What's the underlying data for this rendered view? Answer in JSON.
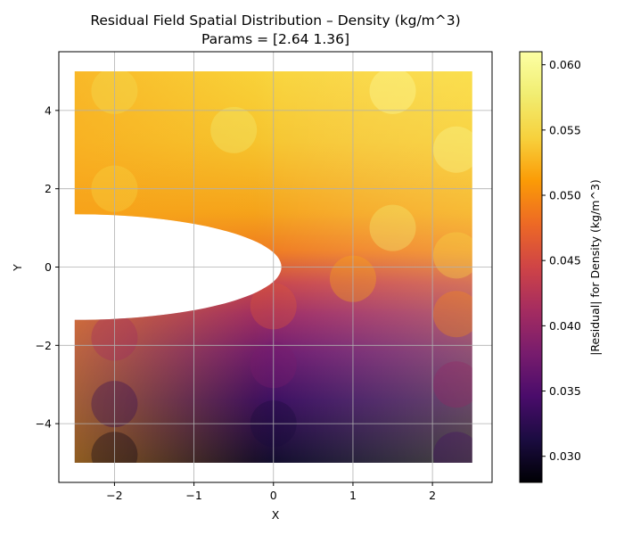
{
  "chart_data": {
    "type": "heatmap",
    "title": "Residual Field Spatial Distribution – Density (kg/m^3)",
    "subtitle": "Params = [2.64 1.36]",
    "xlabel": "X",
    "ylabel": "Y",
    "xlim": [
      -2.7,
      2.75
    ],
    "ylim": [
      -5.5,
      5.5
    ],
    "x_ticks": [
      -2,
      -1,
      0,
      1,
      2
    ],
    "y_ticks": [
      -4,
      -2,
      0,
      2,
      4
    ],
    "x_tick_labels": [
      "−2",
      "−1",
      "0",
      "1",
      "2"
    ],
    "y_tick_labels": [
      "−4",
      "−2",
      "0",
      "2",
      "4"
    ],
    "grid": true,
    "domain": {
      "x_range": [
        -2.5,
        2.5
      ],
      "y_range": [
        -5.0,
        5.0
      ],
      "cutout": "half-ellipse open to the left, tip at x=0.1, half-height 1.35 at x=-2.5"
    },
    "colorbar": {
      "label": "|Residual| for Density (kg/m^3)",
      "colormap": "inferno",
      "range": [
        0.028,
        0.061
      ],
      "ticks": [
        0.03,
        0.035,
        0.04,
        0.045,
        0.05,
        0.055,
        0.06
      ],
      "tick_labels": [
        "0.030",
        "0.035",
        "0.040",
        "0.045",
        "0.050",
        "0.055",
        "0.060"
      ]
    },
    "field_samples": [
      {
        "x": -2.0,
        "y": 4.5,
        "value": 0.056
      },
      {
        "x": -2.0,
        "y": 2.0,
        "value": 0.055
      },
      {
        "x": -0.5,
        "y": 3.5,
        "value": 0.058
      },
      {
        "x": 1.5,
        "y": 4.5,
        "value": 0.061
      },
      {
        "x": 2.3,
        "y": 3.0,
        "value": 0.06
      },
      {
        "x": 1.5,
        "y": 1.0,
        "value": 0.058
      },
      {
        "x": 2.3,
        "y": 0.3,
        "value": 0.055
      },
      {
        "x": 1.0,
        "y": -0.3,
        "value": 0.052
      },
      {
        "x": 2.3,
        "y": -1.2,
        "value": 0.05
      },
      {
        "x": 0.0,
        "y": -1.0,
        "value": 0.046
      },
      {
        "x": -2.0,
        "y": -1.8,
        "value": 0.041
      },
      {
        "x": 0.0,
        "y": -2.5,
        "value": 0.038
      },
      {
        "x": 2.3,
        "y": -3.0,
        "value": 0.04
      },
      {
        "x": -2.0,
        "y": -3.5,
        "value": 0.033
      },
      {
        "x": 0.0,
        "y": -4.0,
        "value": 0.031
      },
      {
        "x": -2.0,
        "y": -4.8,
        "value": 0.029
      },
      {
        "x": 2.3,
        "y": -4.8,
        "value": 0.034
      }
    ]
  }
}
